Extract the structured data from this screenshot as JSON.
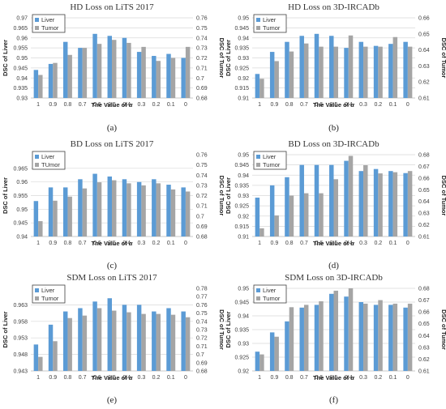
{
  "colors": {
    "liver": "#5b9bd5",
    "tumor": "#a5a5a5",
    "grid": "#d9d9d9"
  },
  "chart_data": [
    {
      "type": "bar",
      "panel": "(a)",
      "title": "HD Loss on LiTS 2017",
      "xlabel": "The Value of α",
      "ylabel_left": "DSC of Liver",
      "ylabel_right": "DSC of Tumor",
      "legend": "top-left",
      "grid": true,
      "categories": [
        "1",
        "0.9",
        "0.8",
        "0.7",
        "0.6",
        "0.5",
        "0.4",
        "0.3",
        "0.2",
        "0.1",
        "0"
      ],
      "left_ylim": [
        0.93,
        0.97
      ],
      "left_ticks": [
        "0.93",
        "0.935",
        "0.94",
        "0.945",
        "0.95",
        "0.955",
        "0.96",
        "0.965",
        "0.97"
      ],
      "right_ylim": [
        0.68,
        0.76
      ],
      "right_ticks": [
        "0.68",
        "0.69",
        "0.7",
        "0.71",
        "0.72",
        "0.73",
        "0.74",
        "0.75",
        "0.76"
      ],
      "series": [
        {
          "name": "Liver",
          "axis": "left",
          "values": [
            0.944,
            0.947,
            0.958,
            0.955,
            0.962,
            0.961,
            0.96,
            0.953,
            0.951,
            0.952,
            0.95
          ]
        },
        {
          "name": "Tumor",
          "axis": "right",
          "values": [
            0.703,
            0.715,
            0.723,
            0.73,
            0.734,
            0.738,
            0.735,
            0.731,
            0.717,
            0.72,
            0.731
          ]
        }
      ]
    },
    {
      "type": "bar",
      "panel": "(b)",
      "title": "HD Loss on 3D-IRCADb",
      "xlabel": "The Value of α",
      "ylabel_left": "DSC of Liver",
      "ylabel_right": "DSC of Tumor",
      "legend": "top-left",
      "grid": true,
      "categories": [
        "1",
        "0.9",
        "0.8",
        "0.7",
        "0.6",
        "0.5",
        "0.4",
        "0.3",
        "0.2",
        "0.1",
        "0"
      ],
      "left_ylim": [
        0.91,
        0.95
      ],
      "left_ticks": [
        "0.91",
        "0.915",
        "0.92",
        "0.925",
        "0.93",
        "0.935",
        "0.94",
        "0.945",
        "0.95"
      ],
      "right_ylim": [
        0.61,
        0.66
      ],
      "right_ticks": [
        "0.61",
        "0.62",
        "0.63",
        "0.64",
        "0.65",
        "0.66"
      ],
      "series": [
        {
          "name": "Liver",
          "axis": "left",
          "values": [
            0.922,
            0.933,
            0.938,
            0.941,
            0.942,
            0.941,
            0.935,
            0.938,
            0.936,
            0.937,
            0.938
          ]
        },
        {
          "name": "Tumor",
          "axis": "right",
          "values": [
            0.622,
            0.633,
            0.639,
            0.644,
            0.642,
            0.642,
            0.649,
            0.642,
            0.642,
            0.648,
            0.642
          ]
        }
      ]
    },
    {
      "type": "bar",
      "panel": "(c)",
      "title": "BD Loss on LiTS 2017",
      "xlabel": "The Value of α",
      "ylabel_left": "DSC of Liver",
      "ylabel_right": "DSC of Tumor",
      "legend": "top-left",
      "grid": true,
      "categories": [
        "1",
        "0.9",
        "0.8",
        "0.7",
        "0.6",
        "0.5",
        "0.4",
        "0.3",
        "0.2",
        "0.1",
        "0"
      ],
      "left_ylim": [
        0.94,
        0.97
      ],
      "left_ticks": [
        "0.94",
        "0.945",
        "0.95",
        "0.955",
        "0.96",
        "0.965"
      ],
      "right_ylim": [
        0.68,
        0.76
      ],
      "right_ticks": [
        "0.68",
        "0.69",
        "0.7",
        "0.71",
        "0.72",
        "0.73",
        "0.74",
        "0.75",
        "0.76"
      ],
      "series": [
        {
          "name": "Liver",
          "axis": "left",
          "values": [
            0.953,
            0.958,
            0.958,
            0.961,
            0.963,
            0.962,
            0.961,
            0.96,
            0.961,
            0.959,
            0.958
          ]
        },
        {
          "name": "TUmor",
          "axis": "right",
          "values": [
            0.695,
            0.715,
            0.719,
            0.727,
            0.733,
            0.735,
            0.732,
            0.73,
            0.732,
            0.726,
            0.724
          ]
        }
      ]
    },
    {
      "type": "bar",
      "panel": "(d)",
      "title": "BD Loss on 3D-IRCADb",
      "xlabel": "The Value of α",
      "ylabel_left": "DSC of Liver",
      "ylabel_right": "DSC of Tumor",
      "legend": "top-left",
      "grid": true,
      "categories": [
        "1",
        "0.9",
        "0.8",
        "0.7",
        "0.6",
        "0.5",
        "0.4",
        "0.3",
        "0.2",
        "0.1",
        "0"
      ],
      "left_ylim": [
        0.91,
        0.95
      ],
      "left_ticks": [
        "0.91",
        "0.915",
        "0.92",
        "0.925",
        "0.93",
        "0.935",
        "0.94",
        "0.945",
        "0.95"
      ],
      "right_ylim": [
        0.61,
        0.68
      ],
      "right_ticks": [
        "0.61",
        "0.62",
        "0.63",
        "0.64",
        "0.65",
        "0.66",
        "0.67",
        "0.68"
      ],
      "series": [
        {
          "name": "Liver",
          "axis": "left",
          "values": [
            0.929,
            0.935,
            0.939,
            0.945,
            0.945,
            0.945,
            0.947,
            0.942,
            0.943,
            0.942,
            0.941
          ]
        },
        {
          "name": "Tumor",
          "axis": "right",
          "values": [
            0.617,
            0.628,
            0.645,
            0.647,
            0.647,
            0.659,
            0.679,
            0.671,
            0.664,
            0.665,
            0.666
          ]
        }
      ]
    },
    {
      "type": "bar",
      "panel": "(e)",
      "title": "SDM Loss on LiTS 2017",
      "xlabel": "The Value of α",
      "ylabel_left": "DSC of Liver",
      "ylabel_right": "DSC of Tumor",
      "legend": "top-left",
      "grid": true,
      "categories": [
        "1",
        "0.9",
        "0.8",
        "0.7",
        "0.6",
        "0.5",
        "0.4",
        "0.3",
        "0.2",
        "0.1",
        "0"
      ],
      "left_ylim": [
        0.943,
        0.968
      ],
      "left_ticks": [
        "0.943",
        "0.948",
        "0.953",
        "0.958",
        "0.963"
      ],
      "right_ylim": [
        0.68,
        0.78
      ],
      "right_ticks": [
        "0.68",
        "0.69",
        "0.7",
        "0.71",
        "0.72",
        "0.73",
        "0.74",
        "0.75",
        "0.76",
        "0.77",
        "0.78"
      ],
      "series": [
        {
          "name": "Liver",
          "axis": "left",
          "values": [
            0.951,
            0.957,
            0.961,
            0.962,
            0.964,
            0.965,
            0.963,
            0.963,
            0.961,
            0.962,
            0.961
          ]
        },
        {
          "name": "Tumor",
          "axis": "right",
          "values": [
            0.697,
            0.716,
            0.744,
            0.747,
            0.756,
            0.753,
            0.751,
            0.749,
            0.749,
            0.748,
            0.745
          ]
        }
      ]
    },
    {
      "type": "bar",
      "panel": "(f)",
      "title": "SDM Loss on 3D-IRCADb",
      "xlabel": "The Value of α",
      "ylabel_left": "DSC of Liver",
      "ylabel_right": "DSC of Tumor",
      "legend": "top-left",
      "grid": true,
      "categories": [
        "1",
        "0.9",
        "0.8",
        "0.7",
        "0.6",
        "0.5",
        "0.4",
        "0.3",
        "0.2",
        "0.1",
        "0"
      ],
      "left_ylim": [
        0.92,
        0.95
      ],
      "left_ticks": [
        "0.92",
        "0.925",
        "0.93",
        "0.935",
        "0.94",
        "0.945",
        "0.95"
      ],
      "right_ylim": [
        0.61,
        0.68
      ],
      "right_ticks": [
        "0.61",
        "0.62",
        "0.63",
        "0.64",
        "0.65",
        "0.66",
        "0.67",
        "0.68"
      ],
      "series": [
        {
          "name": "Liver",
          "axis": "left",
          "values": [
            0.927,
            0.934,
            0.938,
            0.943,
            0.944,
            0.948,
            0.947,
            0.945,
            0.944,
            0.944,
            0.943
          ]
        },
        {
          "name": "Tumor",
          "axis": "right",
          "values": [
            0.624,
            0.639,
            0.664,
            0.666,
            0.669,
            0.678,
            0.68,
            0.667,
            0.67,
            0.667,
            0.667
          ]
        }
      ]
    }
  ]
}
